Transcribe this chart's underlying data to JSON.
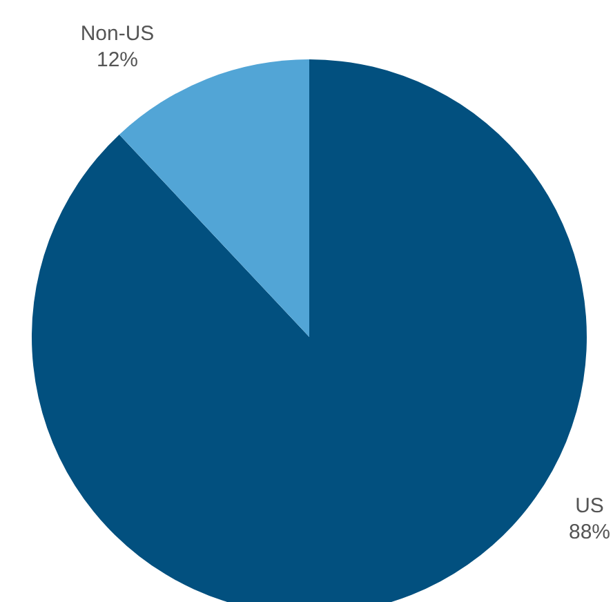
{
  "chart_data": {
    "type": "pie",
    "categories": [
      "US",
      "Non-US"
    ],
    "values": [
      88,
      12
    ],
    "colors": [
      "#02507f",
      "#52a5d6"
    ],
    "value_labels": [
      "88%",
      "12%"
    ]
  }
}
